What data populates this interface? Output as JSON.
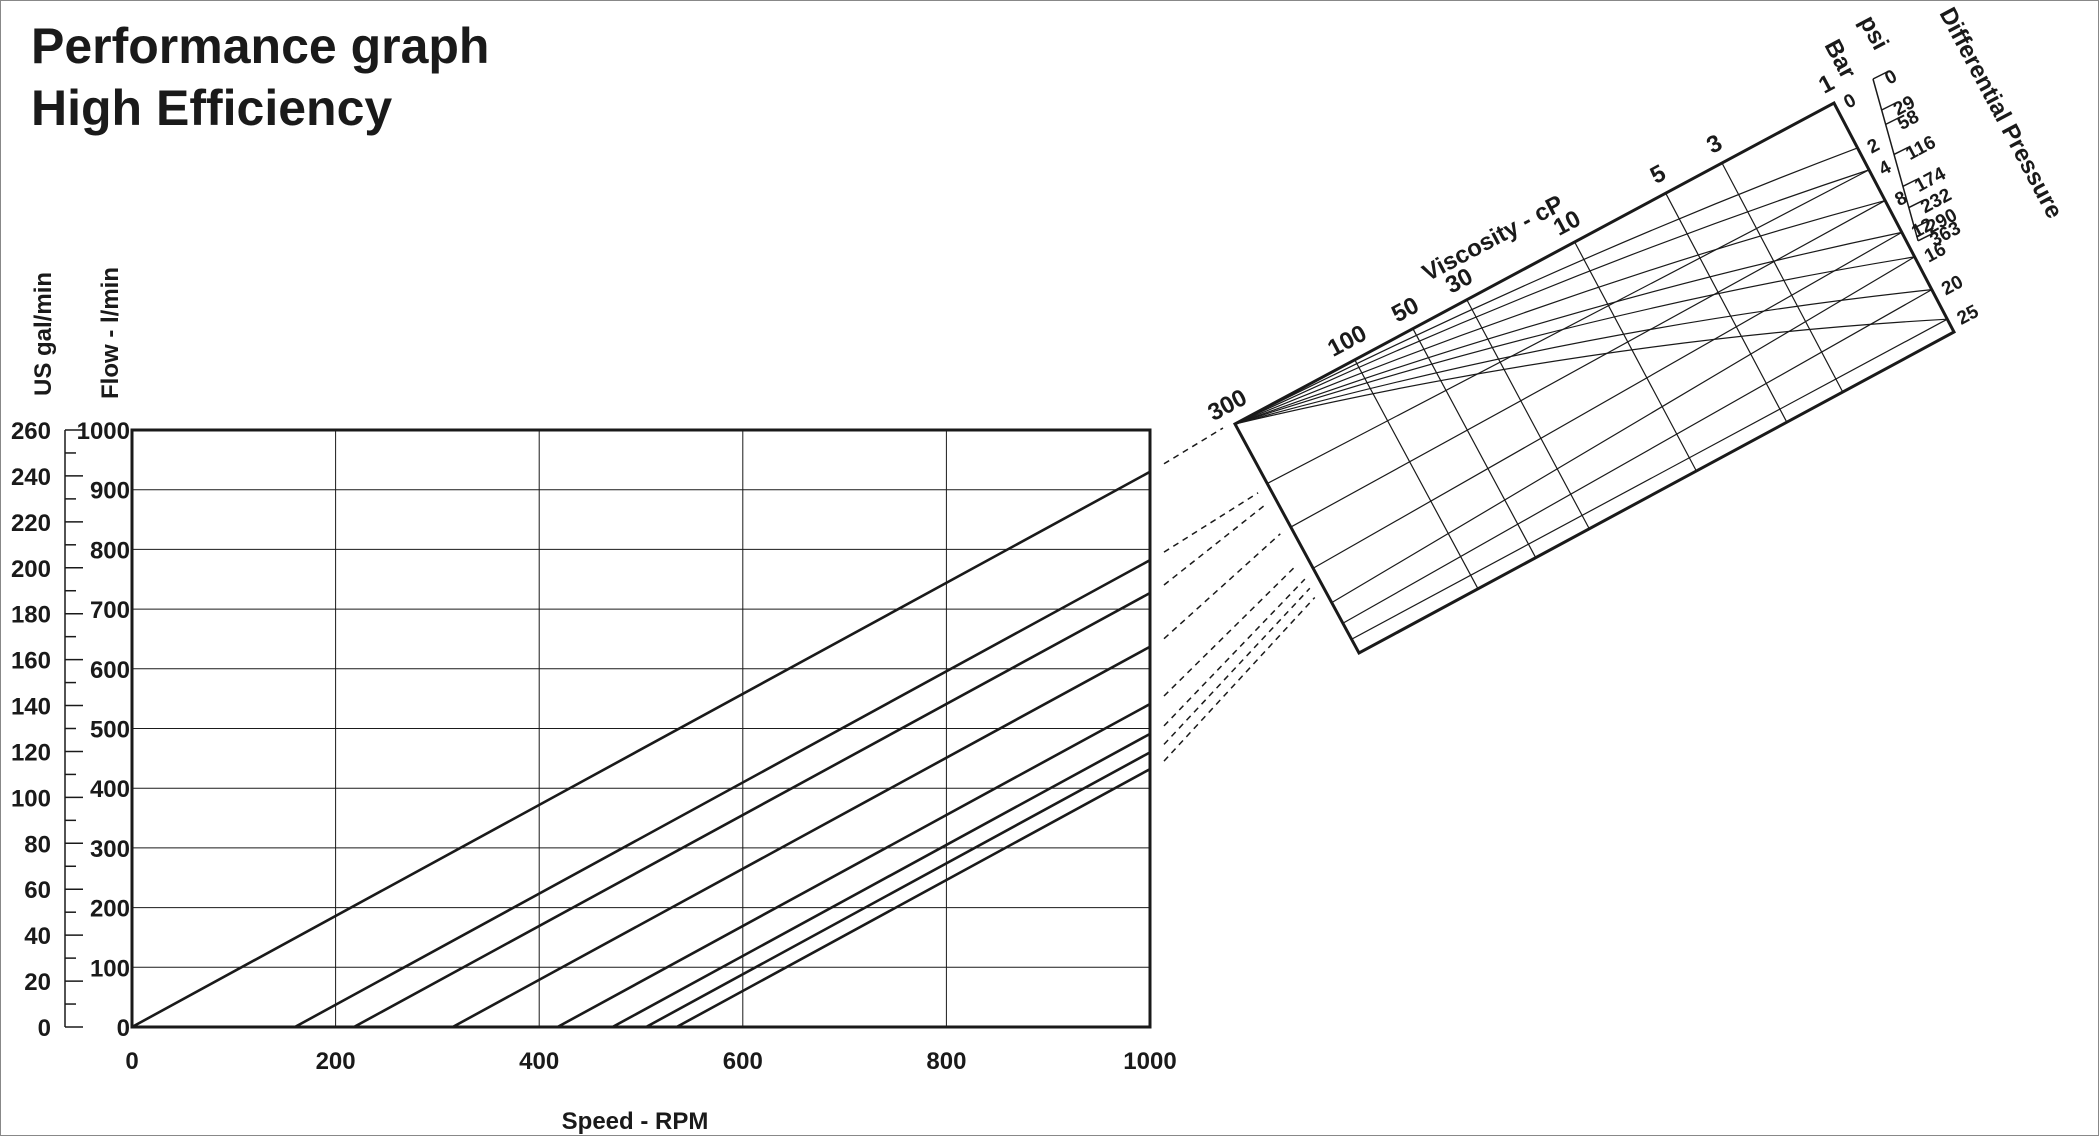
{
  "title": "Performance graph",
  "subtitle": "High Efficiency",
  "chart_data": {
    "type": "line",
    "title": "Performance graph",
    "subtitle": "High Efficiency",
    "xlabel": "Speed - RPM",
    "ylabel": "Flow - l/min",
    "ylabel_secondary": "US gal/min",
    "xlim": [
      0,
      1000
    ],
    "ylim": [
      0,
      1000
    ],
    "ylim_secondary": [
      0,
      260
    ],
    "x_ticks": [
      "0",
      "200",
      "400",
      "600",
      "800",
      "1000"
    ],
    "y_ticks": [
      "0",
      "100",
      "200",
      "300",
      "400",
      "500",
      "600",
      "700",
      "800",
      "900",
      "1000"
    ],
    "y_secondary_ticks": [
      "0",
      "20",
      "40",
      "60",
      "80",
      "100",
      "120",
      "140",
      "160",
      "180",
      "200",
      "220",
      "240",
      "260"
    ],
    "grid": true,
    "series": [
      {
        "x": [
          0,
          1000
        ],
        "y": [
          0,
          930
        ]
      },
      {
        "x": [
          160,
          1000
        ],
        "y": [
          0,
          782
        ]
      },
      {
        "x": [
          218,
          1000
        ],
        "y": [
          0,
          727
        ]
      },
      {
        "x": [
          315,
          1000
        ],
        "y": [
          0,
          637
        ]
      },
      {
        "x": [
          418,
          1000
        ],
        "y": [
          0,
          541
        ]
      },
      {
        "x": [
          472,
          1000
        ],
        "y": [
          0,
          491
        ]
      },
      {
        "x": [
          505,
          1000
        ],
        "y": [
          0,
          460
        ]
      },
      {
        "x": [
          535,
          1000
        ],
        "y": [
          0,
          432
        ]
      }
    ],
    "nomogram": {
      "viscosity_label": "Viscosity - cP",
      "viscosity_ticks": [
        "300",
        "100",
        "50",
        "30",
        "10",
        "5",
        "3",
        "1"
      ],
      "pressure_label": "Differential Pressure",
      "pressure_bar_label": "Bar",
      "pressure_psi_label": "psi",
      "bar_ticks": [
        "0",
        "2",
        "4",
        "8",
        "12",
        "16",
        "20",
        "25"
      ],
      "psi_ticks": [
        "0",
        "29",
        "58",
        "116",
        "174",
        "232",
        "290",
        "363"
      ]
    }
  }
}
